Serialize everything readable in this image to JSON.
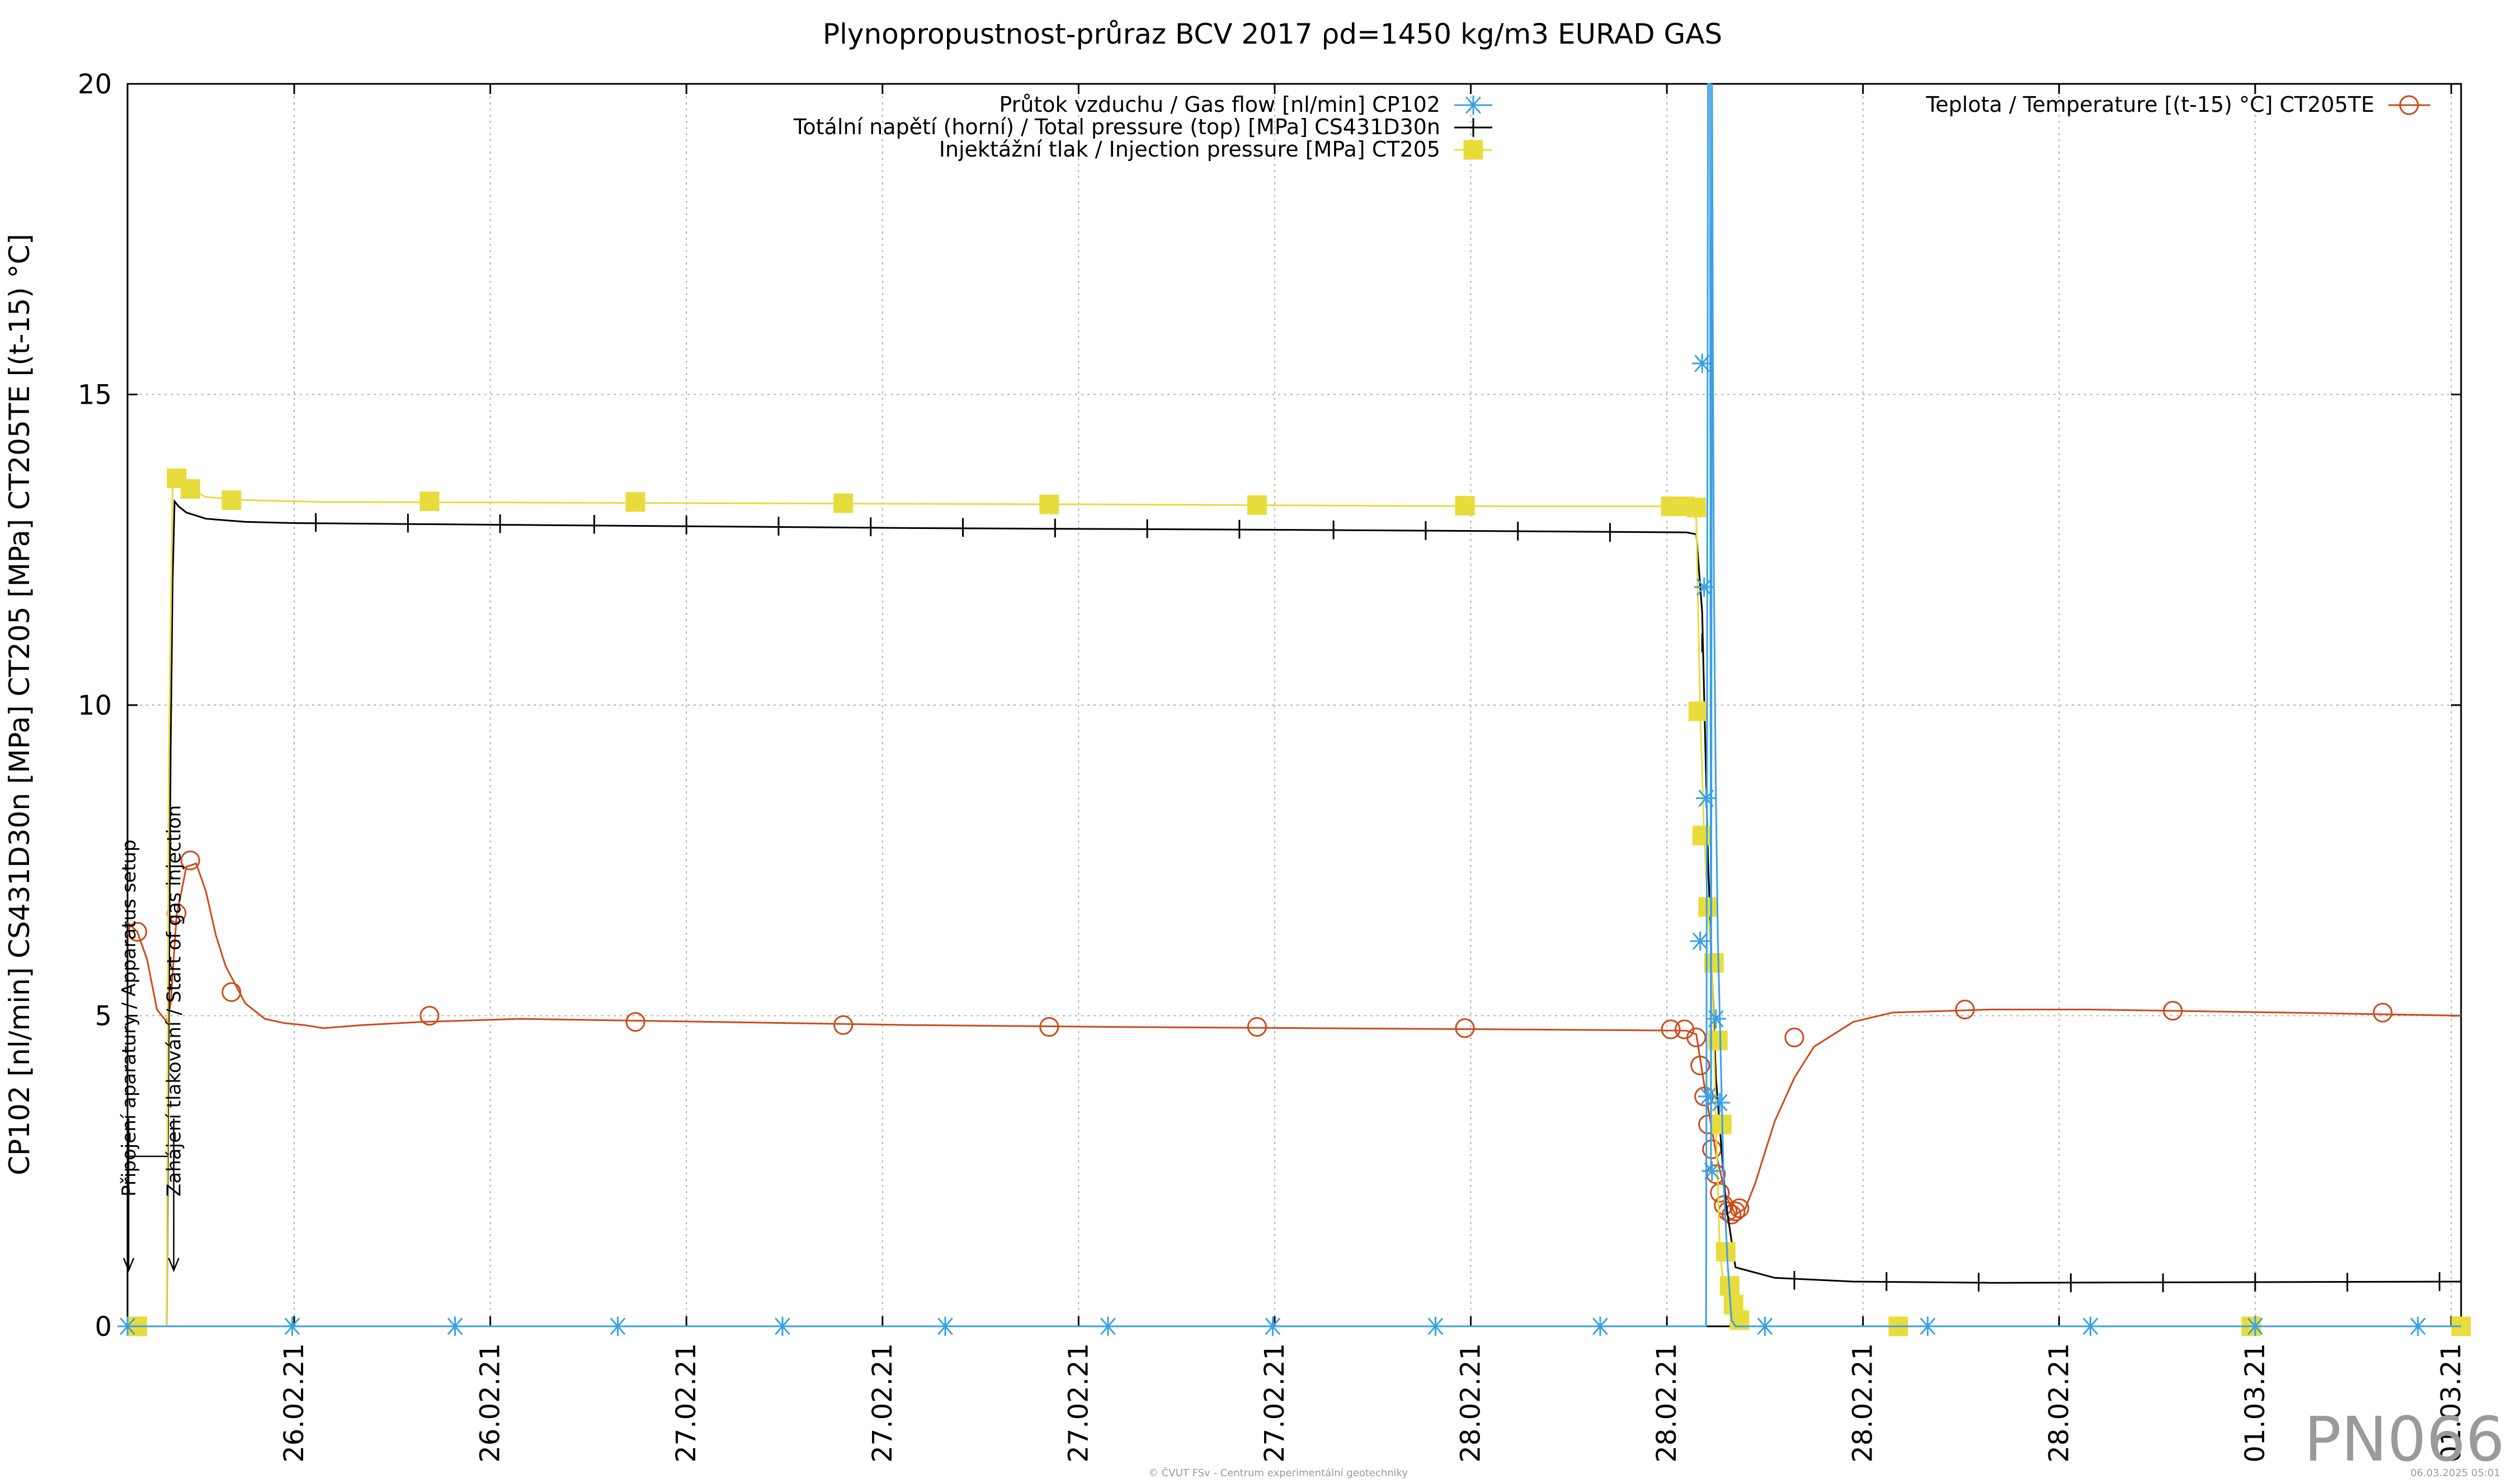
{
  "chart_data": {
    "type": "line",
    "title": "Plynopropustnost-průraz BCV 2017 ρd=1450 kg/m3 EURAD GAS",
    "ylabel": "CP102 [nl/min] CS431D30n [MPa] CT205 [MPa] CT205TE [(t-15) °C]",
    "xlabel": "",
    "ylim": [
      0,
      20
    ],
    "xlim": [
      0,
      11.9
    ],
    "yticks": [
      0,
      5,
      10,
      15,
      20
    ],
    "x_tick_positions": [
      0.85,
      1.85,
      2.85,
      3.85,
      4.85,
      5.85,
      6.85,
      7.85,
      8.85,
      9.85,
      10.85,
      11.85
    ],
    "x_tick_labels": [
      "26.02.21",
      "26.02.21",
      "27.02.21",
      "27.02.21",
      "27.02.21",
      "27.02.21",
      "28.02.21",
      "28.02.21",
      "28.02.21",
      "28.02.21",
      "01.03.21",
      "01.03.21"
    ],
    "grid": true,
    "series": [
      {
        "name": "Průtok vzduchu / Gas flow [nl/min] CP102",
        "color": "#3aa0e6",
        "marker": "star",
        "line_x": [
          0,
          8.05,
          8.06,
          8.07,
          8.075,
          8.08,
          8.085,
          8.09,
          8.1,
          8.11,
          8.12,
          8.13,
          8.14,
          8.16,
          8.18,
          8.2,
          11.9
        ],
        "line_y": [
          0,
          0,
          20,
          20,
          2.5,
          20,
          15.5,
          11.9,
          8.5,
          6.2,
          4.95,
          3.6,
          2.3,
          1.0,
          0.1,
          0,
          0
        ],
        "points_x": [
          0,
          0.84,
          1.67,
          2.5,
          3.34,
          4.17,
          5.0,
          5.84,
          6.67,
          7.51,
          8.02,
          8.03,
          8.04,
          8.05,
          8.06,
          8.08,
          8.1,
          8.12,
          8.35,
          9.18,
          10.01,
          10.85,
          11.68
        ],
        "points_y": [
          0,
          0,
          0,
          0,
          0,
          0,
          0,
          0,
          0,
          0,
          6.2,
          15.5,
          11.9,
          8.5,
          3.7,
          2.5,
          4.95,
          3.6,
          0,
          0,
          0,
          0,
          0
        ]
      },
      {
        "name": "Totální napětí (horní) / Total pressure (top) [MPa] CS431D30n",
        "color": "#000000",
        "marker": "tick",
        "line_x": [
          0.2,
          0.22,
          0.23,
          0.24,
          0.26,
          0.3,
          0.4,
          0.6,
          0.85,
          2.0,
          4.0,
          6.0,
          7.0,
          7.95,
          8.0,
          8.03,
          8.06,
          8.1,
          8.15,
          8.2,
          8.4,
          8.8,
          9.5,
          11.9
        ],
        "line_y": [
          0,
          9.3,
          12.0,
          13.28,
          13.2,
          13.1,
          13.0,
          12.95,
          12.93,
          12.9,
          12.85,
          12.82,
          12.8,
          12.78,
          12.75,
          11.5,
          7.5,
          4.0,
          2.0,
          0.95,
          0.78,
          0.72,
          0.7,
          0.72
        ],
        "points_x": [
          0.96,
          1.43,
          1.9,
          2.38,
          2.85,
          3.32,
          3.79,
          4.26,
          4.73,
          5.2,
          5.67,
          6.15,
          6.62,
          7.09,
          7.56,
          8.03,
          8.5,
          8.97,
          9.44,
          9.91,
          10.38,
          10.85,
          11.32,
          11.79
        ],
        "points_y": [
          12.94,
          12.93,
          12.92,
          12.91,
          12.9,
          12.88,
          12.87,
          12.86,
          12.85,
          12.84,
          12.83,
          12.82,
          12.81,
          12.8,
          12.78,
          11.0,
          0.74,
          0.72,
          0.71,
          0.7,
          0.7,
          0.71,
          0.71,
          0.72
        ]
      },
      {
        "name": "Injektážní tlak / Injection pressure [MPa] CT205",
        "color": "#e8dc3c",
        "marker": "square",
        "line_x": [
          0,
          0.2,
          0.21,
          0.23,
          0.25,
          0.3,
          0.4,
          0.6,
          1.0,
          3.0,
          5.0,
          7.0,
          7.95,
          8.0,
          8.02,
          8.04,
          8.06,
          8.08,
          8.1,
          8.12,
          8.15,
          8.18,
          8.2,
          8.25,
          11.9
        ],
        "line_y": [
          0,
          0,
          9.0,
          13.6,
          13.65,
          13.5,
          13.35,
          13.3,
          13.27,
          13.25,
          13.23,
          13.2,
          13.2,
          13.0,
          9.9,
          7.9,
          6.7,
          5.8,
          3.3,
          1.2,
          0.4,
          0.1,
          0,
          0,
          0
        ],
        "points_x": [
          0.05,
          0.25,
          0.32,
          0.53,
          1.54,
          2.59,
          3.65,
          4.7,
          5.76,
          6.82,
          7.87,
          7.94,
          8.0,
          8.01,
          8.03,
          8.06,
          8.09,
          8.11,
          8.13,
          8.15,
          8.17,
          8.19,
          8.22,
          9.03,
          10.83,
          11.9
        ],
        "points_y": [
          0,
          13.65,
          13.48,
          13.3,
          13.28,
          13.27,
          13.25,
          13.23,
          13.22,
          13.21,
          13.2,
          13.2,
          13.18,
          9.9,
          7.9,
          6.75,
          5.85,
          4.6,
          3.25,
          1.2,
          0.65,
          0.35,
          0.1,
          0,
          0,
          0
        ]
      },
      {
        "name": "Teplota / Temperature [(t-15) °C] CT205TE",
        "color": "#cc4b1a",
        "marker": "circle",
        "line_x": [
          0,
          0.05,
          0.1,
          0.15,
          0.2,
          0.22,
          0.25,
          0.3,
          0.35,
          0.4,
          0.45,
          0.5,
          0.55,
          0.6,
          0.7,
          0.8,
          0.9,
          1.0,
          1.2,
          1.5,
          2.0,
          3.0,
          4.0,
          5.0,
          6.0,
          7.0,
          7.95,
          8.0,
          8.05,
          8.1,
          8.15,
          8.2,
          8.25,
          8.3,
          8.4,
          8.5,
          8.6,
          8.8,
          9.0,
          9.5,
          10.0,
          11.0,
          11.9
        ],
        "line_y": [
          6.5,
          6.35,
          5.9,
          5.1,
          4.9,
          5.2,
          6.6,
          7.4,
          7.45,
          7.0,
          6.3,
          5.8,
          5.5,
          5.2,
          4.95,
          4.88,
          4.85,
          4.8,
          4.85,
          4.9,
          4.95,
          4.9,
          4.85,
          4.82,
          4.8,
          4.78,
          4.76,
          4.7,
          3.7,
          2.8,
          2.1,
          1.8,
          1.9,
          2.3,
          3.3,
          4.0,
          4.5,
          4.9,
          5.05,
          5.1,
          5.1,
          5.05,
          5.0
        ],
        "points_x": [
          0.05,
          0.25,
          0.32,
          0.53,
          1.54,
          2.59,
          3.65,
          4.7,
          5.76,
          6.82,
          7.87,
          7.94,
          8.0,
          8.02,
          8.04,
          8.06,
          8.08,
          8.1,
          8.12,
          8.14,
          8.16,
          8.18,
          8.2,
          8.22,
          8.5,
          9.37,
          10.43,
          11.5
        ],
        "points_y": [
          6.35,
          6.65,
          7.5,
          5.38,
          5.0,
          4.9,
          4.85,
          4.82,
          4.82,
          4.8,
          4.78,
          4.78,
          4.65,
          4.2,
          3.7,
          3.25,
          2.85,
          2.45,
          2.15,
          1.95,
          1.85,
          1.8,
          1.85,
          1.9,
          4.65,
          5.1,
          5.08,
          5.05
        ]
      }
    ],
    "annotations": [
      {
        "text": "Připojení aparatury / Apparatus setup",
        "x": 0.0
      },
      {
        "text": "Zahájení tlakování / Start of gas injection",
        "x": 0.23
      }
    ],
    "legend_left_placement": "top-center",
    "legend_right_placement": "top-right"
  },
  "watermark": "PN066",
  "footer_center": "© ČVUT FSv - Centrum experimentální geotechniky",
  "footer_right": "06.03.2025 05:01"
}
